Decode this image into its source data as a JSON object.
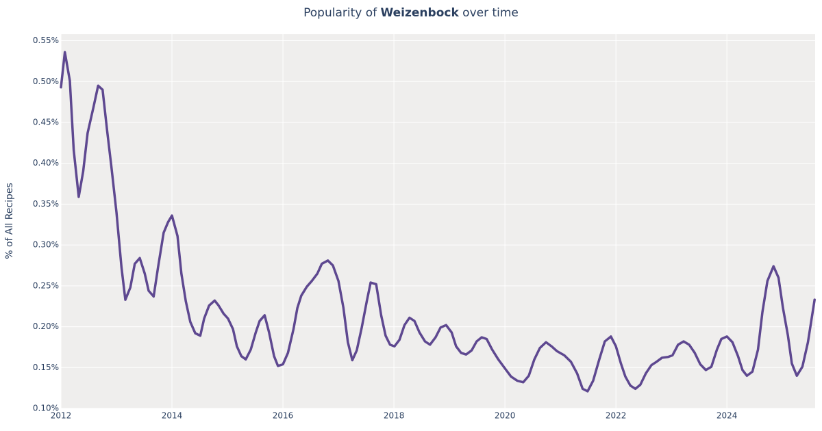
{
  "chart_data": {
    "type": "line",
    "title": [
      {
        "text": "Popularity of "
      },
      {
        "text": "Weizenbock",
        "bold": true
      },
      {
        "text": " over time"
      }
    ],
    "ylabel": "% of All Recipes",
    "xlim": [
      2012,
      2025.59
    ],
    "xticks": [
      2012,
      2014,
      2016,
      2018,
      2020,
      2022,
      2024
    ],
    "ylim": [
      0.1,
      0.558
    ],
    "yticks": [
      {
        "value": 0.1,
        "label": "0.10%"
      },
      {
        "value": 0.15,
        "label": "0.15%"
      },
      {
        "value": 0.2,
        "label": "0.20%"
      },
      {
        "value": 0.25,
        "label": "0.25%"
      },
      {
        "value": 0.3,
        "label": "0.30%"
      },
      {
        "value": 0.35,
        "label": "0.35%"
      },
      {
        "value": 0.4,
        "label": "0.40%"
      },
      {
        "value": 0.45,
        "label": "0.45%"
      },
      {
        "value": 0.5,
        "label": "0.50%"
      },
      {
        "value": 0.55,
        "label": "0.55%"
      }
    ],
    "grid": true,
    "background": "#efeeed",
    "series": [
      {
        "color": "#5e4890",
        "x": [
          2012.0,
          2012.07,
          2012.16,
          2012.23,
          2012.32,
          2012.4,
          2012.48,
          2012.59,
          2012.67,
          2012.75,
          2012.83,
          2012.91,
          2013.0,
          2013.09,
          2013.16,
          2013.25,
          2013.33,
          2013.42,
          2013.51,
          2013.58,
          2013.67,
          2013.75,
          2013.85,
          2013.93,
          2014.0,
          2014.1,
          2014.17,
          2014.25,
          2014.33,
          2014.42,
          2014.51,
          2014.58,
          2014.67,
          2014.77,
          2014.84,
          2014.93,
          2015.01,
          2015.1,
          2015.17,
          2015.25,
          2015.33,
          2015.42,
          2015.51,
          2015.58,
          2015.67,
          2015.75,
          2015.84,
          2015.91,
          2016.0,
          2016.09,
          2016.19,
          2016.26,
          2016.33,
          2016.43,
          2016.52,
          2016.62,
          2016.7,
          2016.81,
          2016.9,
          2017.0,
          2017.09,
          2017.17,
          2017.25,
          2017.33,
          2017.42,
          2017.51,
          2017.58,
          2017.68,
          2017.77,
          2017.85,
          2017.93,
          2018.01,
          2018.1,
          2018.19,
          2018.28,
          2018.37,
          2018.46,
          2018.56,
          2018.65,
          2018.75,
          2018.84,
          2018.94,
          2019.04,
          2019.12,
          2019.21,
          2019.3,
          2019.4,
          2019.49,
          2019.58,
          2019.67,
          2019.77,
          2019.88,
          2020.0,
          2020.11,
          2020.22,
          2020.33,
          2020.43,
          2020.53,
          2020.63,
          2020.74,
          2020.84,
          2020.94,
          2021.07,
          2021.19,
          2021.3,
          2021.4,
          2021.49,
          2021.59,
          2021.7,
          2021.8,
          2021.91,
          2022.0,
          2022.09,
          2022.17,
          2022.26,
          2022.35,
          2022.44,
          2022.54,
          2022.64,
          2022.73,
          2022.83,
          2022.94,
          2023.02,
          2023.12,
          2023.22,
          2023.32,
          2023.42,
          2023.52,
          2023.62,
          2023.72,
          2023.82,
          2023.9,
          2024.0,
          2024.1,
          2024.2,
          2024.28,
          2024.36,
          2024.46,
          2024.56,
          2024.64,
          2024.73,
          2024.84,
          2024.93,
          2025.01,
          2025.1,
          2025.17,
          2025.26,
          2025.36,
          2025.46,
          2025.58
        ],
        "values": [
          0.493,
          0.536,
          0.501,
          0.416,
          0.359,
          0.39,
          0.437,
          0.47,
          0.495,
          0.49,
          0.441,
          0.395,
          0.34,
          0.273,
          0.233,
          0.248,
          0.277,
          0.284,
          0.265,
          0.244,
          0.237,
          0.273,
          0.315,
          0.328,
          0.336,
          0.311,
          0.265,
          0.231,
          0.206,
          0.192,
          0.189,
          0.21,
          0.226,
          0.232,
          0.226,
          0.216,
          0.21,
          0.197,
          0.176,
          0.164,
          0.16,
          0.172,
          0.193,
          0.207,
          0.214,
          0.193,
          0.164,
          0.152,
          0.154,
          0.168,
          0.197,
          0.223,
          0.238,
          0.249,
          0.256,
          0.265,
          0.277,
          0.281,
          0.275,
          0.256,
          0.223,
          0.181,
          0.159,
          0.171,
          0.199,
          0.231,
          0.254,
          0.252,
          0.214,
          0.189,
          0.178,
          0.176,
          0.184,
          0.202,
          0.211,
          0.207,
          0.193,
          0.182,
          0.178,
          0.187,
          0.199,
          0.202,
          0.193,
          0.176,
          0.168,
          0.166,
          0.171,
          0.182,
          0.187,
          0.185,
          0.172,
          0.16,
          0.149,
          0.139,
          0.134,
          0.132,
          0.14,
          0.16,
          0.174,
          0.181,
          0.176,
          0.17,
          0.165,
          0.157,
          0.143,
          0.124,
          0.121,
          0.134,
          0.16,
          0.182,
          0.188,
          0.176,
          0.155,
          0.139,
          0.128,
          0.124,
          0.129,
          0.143,
          0.153,
          0.157,
          0.162,
          0.163,
          0.165,
          0.178,
          0.182,
          0.178,
          0.168,
          0.154,
          0.147,
          0.151,
          0.172,
          0.185,
          0.188,
          0.181,
          0.164,
          0.147,
          0.14,
          0.145,
          0.172,
          0.218,
          0.256,
          0.274,
          0.26,
          0.223,
          0.189,
          0.155,
          0.14,
          0.151,
          0.181,
          0.233
        ]
      }
    ]
  }
}
